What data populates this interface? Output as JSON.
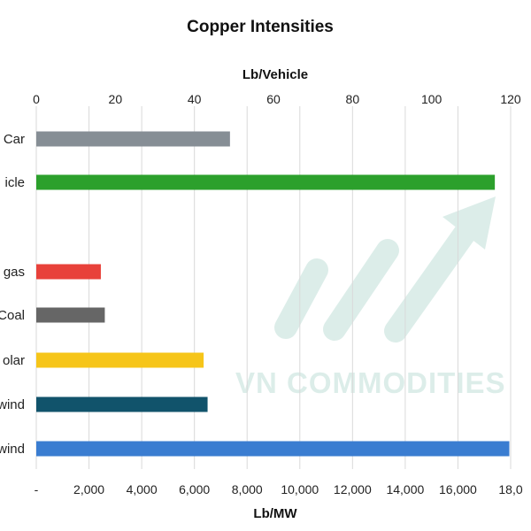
{
  "chart_data": {
    "type": "bar",
    "orientation": "horizontal",
    "title": "Copper Intensities",
    "top_axis": {
      "label": "Lb/Vehicle",
      "range": [
        0,
        120
      ],
      "ticks": [
        "0",
        "20",
        "40",
        "60",
        "80",
        "100",
        "120"
      ]
    },
    "bottom_axis": {
      "label": "Lb/MW",
      "range": [
        0,
        18000
      ],
      "ticks": [
        "-",
        "2,000",
        "4,000",
        "6,000",
        "8,000",
        "10,000",
        "12,000",
        "14,000",
        "16,000",
        "18,0"
      ]
    },
    "grid": true,
    "vehicle_series": [
      {
        "label": "Car",
        "value": 49,
        "color": "#868e95"
      },
      {
        "label": "icle",
        "value": 116,
        "color": "#2ca02c"
      }
    ],
    "power_series": [
      {
        "label": "gas",
        "value": 2450,
        "color": "#e8413a"
      },
      {
        "label": "Coal",
        "value": 2600,
        "color": "#666666"
      },
      {
        "label": "olar",
        "value": 6350,
        "color": "#f6c519"
      },
      {
        "label": "wind",
        "value": 6500,
        "color": "#11536b"
      },
      {
        "label": "wind",
        "value": 17950,
        "color": "#3a7dd1"
      }
    ]
  },
  "watermark": {
    "text": "VN COMMODITIES",
    "color": "#d7ebe6"
  }
}
